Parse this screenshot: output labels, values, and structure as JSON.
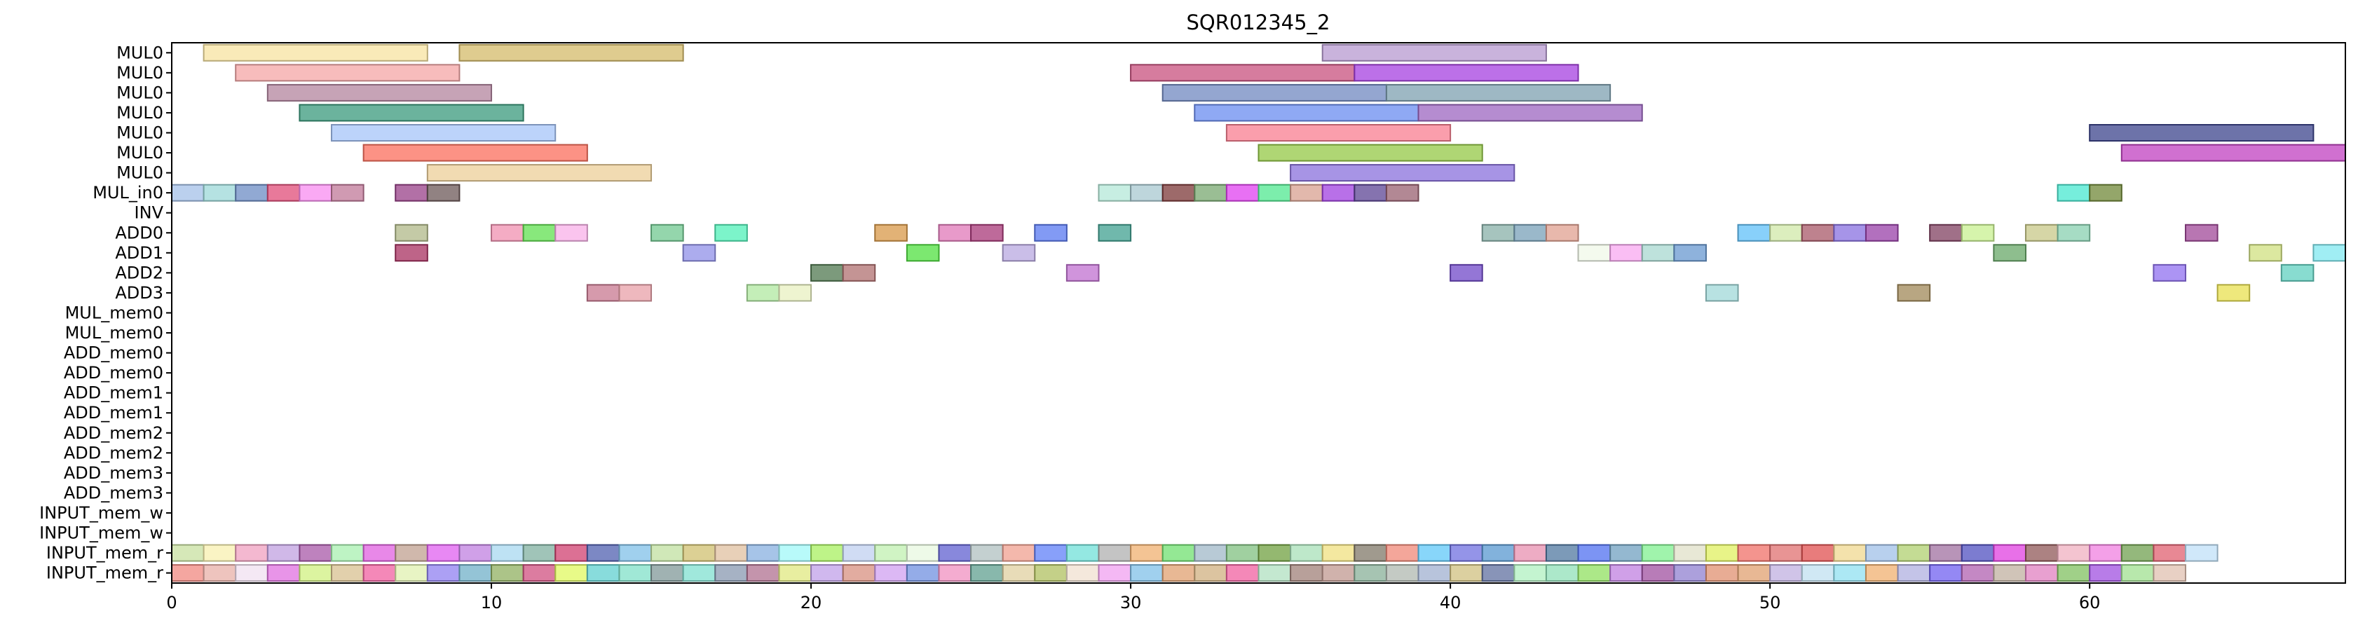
{
  "chart_data": {
    "type": "gantt",
    "title": "SQR012345_2",
    "xlim": [
      0,
      68
    ],
    "x_ticks": [
      0,
      10,
      20,
      30,
      40,
      50,
      60
    ],
    "rows": [
      "MUL0",
      "MUL0",
      "MUL0",
      "MUL0",
      "MUL0",
      "MUL0",
      "MUL0",
      "MUL_in0",
      "INV",
      "ADD0",
      "ADD1",
      "ADD2",
      "ADD3",
      "MUL_mem0",
      "MUL_mem0",
      "ADD_mem0",
      "ADD_mem0",
      "ADD_mem1",
      "ADD_mem1",
      "ADD_mem2",
      "ADD_mem2",
      "ADD_mem3",
      "ADD_mem3",
      "INPUT_mem_w",
      "INPUT_mem_w",
      "INPUT_mem_r",
      "INPUT_mem_r"
    ],
    "bars": [
      {
        "row": 0,
        "start": 1,
        "end": 8,
        "color": "#f7e3a0"
      },
      {
        "row": 0,
        "start": 9,
        "end": 16,
        "color": "#d4bb6a"
      },
      {
        "row": 0,
        "start": 36,
        "end": 43,
        "color": "#b79ad0"
      },
      {
        "row": 1,
        "start": 2,
        "end": 9,
        "color": "#f4a6a6"
      },
      {
        "row": 1,
        "start": 30,
        "end": 37,
        "color": "#c8507e"
      },
      {
        "row": 1,
        "start": 37,
        "end": 44,
        "color": "#a640e0"
      },
      {
        "row": 2,
        "start": 3,
        "end": 10,
        "color": "#b3849e"
      },
      {
        "row": 2,
        "start": 31,
        "end": 38,
        "color": "#7088c0"
      },
      {
        "row": 2,
        "start": 38,
        "end": 45,
        "color": "#7ea0b0"
      },
      {
        "row": 3,
        "start": 4,
        "end": 11,
        "color": "#3a9a7c"
      },
      {
        "row": 3,
        "start": 32,
        "end": 39,
        "color": "#6a8cf0"
      },
      {
        "row": 3,
        "start": 39,
        "end": 46,
        "color": "#9c66c0"
      },
      {
        "row": 4,
        "start": 5,
        "end": 12,
        "color": "#a6c4f8"
      },
      {
        "row": 4,
        "start": 33,
        "end": 40,
        "color": "#f87e90"
      },
      {
        "row": 4,
        "start": 60,
        "end": 67,
        "color": "#3c448c"
      },
      {
        "row": 5,
        "start": 6,
        "end": 13,
        "color": "#fb6e5c"
      },
      {
        "row": 5,
        "start": 34,
        "end": 41,
        "color": "#94c846"
      },
      {
        "row": 5,
        "start": 61,
        "end": 68,
        "color": "#c040c0"
      },
      {
        "row": 6,
        "start": 8,
        "end": 15,
        "color": "#eccf98"
      },
      {
        "row": 6,
        "start": 35,
        "end": 42,
        "color": "#8a70dc"
      },
      {
        "row": 7,
        "start": 0,
        "end": 1,
        "color": "#a4c0e8"
      },
      {
        "row": 7,
        "start": 1,
        "end": 2,
        "color": "#9cd8d8"
      },
      {
        "row": 7,
        "start": 2,
        "end": 3,
        "color": "#6c8cc4"
      },
      {
        "row": 7,
        "start": 3,
        "end": 4,
        "color": "#e04c78"
      },
      {
        "row": 7,
        "start": 4,
        "end": 5,
        "color": "#f88cf0"
      },
      {
        "row": 7,
        "start": 5,
        "end": 6,
        "color": "#c07898"
      },
      {
        "row": 7,
        "start": 7,
        "end": 8,
        "color": "#984088"
      },
      {
        "row": 7,
        "start": 8,
        "end": 9,
        "color": "#6c5858"
      },
      {
        "row": 7,
        "start": 29,
        "end": 30,
        "color": "#b4e8d8"
      },
      {
        "row": 7,
        "start": 30,
        "end": 31,
        "color": "#a8c8d0"
      },
      {
        "row": 7,
        "start": 31,
        "end": 32,
        "color": "#7c3838"
      },
      {
        "row": 7,
        "start": 32,
        "end": 33,
        "color": "#78a870"
      },
      {
        "row": 7,
        "start": 33,
        "end": 34,
        "color": "#e040f0"
      },
      {
        "row": 7,
        "start": 34,
        "end": 35,
        "color": "#50e890"
      },
      {
        "row": 7,
        "start": 35,
        "end": 36,
        "color": "#d8a090"
      },
      {
        "row": 7,
        "start": 36,
        "end": 37,
        "color": "#a040e0"
      },
      {
        "row": 7,
        "start": 37,
        "end": 38,
        "color": "#5c4494"
      },
      {
        "row": 7,
        "start": 38,
        "end": 39,
        "color": "#986070"
      },
      {
        "row": 7,
        "start": 59,
        "end": 60,
        "color": "#48e8d0"
      },
      {
        "row": 7,
        "start": 60,
        "end": 61,
        "color": "#708838"
      },
      {
        "row": 9,
        "start": 7,
        "end": 8,
        "color": "#b0b888"
      },
      {
        "row": 9,
        "start": 10,
        "end": 11,
        "color": "#f090b0"
      },
      {
        "row": 9,
        "start": 11,
        "end": 12,
        "color": "#60e050"
      },
      {
        "row": 9,
        "start": 12,
        "end": 13,
        "color": "#f8b0e8"
      },
      {
        "row": 9,
        "start": 15,
        "end": 16,
        "color": "#70c890"
      },
      {
        "row": 9,
        "start": 17,
        "end": 18,
        "color": "#50f0b8"
      },
      {
        "row": 9,
        "start": 22,
        "end": 23,
        "color": "#d89848"
      },
      {
        "row": 9,
        "start": 24,
        "end": 25,
        "color": "#e078b8"
      },
      {
        "row": 9,
        "start": 25,
        "end": 26,
        "color": "#a83878"
      },
      {
        "row": 9,
        "start": 27,
        "end": 28,
        "color": "#5878f0"
      },
      {
        "row": 9,
        "start": 29,
        "end": 30,
        "color": "#40a090"
      },
      {
        "row": 9,
        "start": 41,
        "end": 42,
        "color": "#88b0a8"
      },
      {
        "row": 9,
        "start": 42,
        "end": 43,
        "color": "#78a0b8"
      },
      {
        "row": 9,
        "start": 43,
        "end": 44,
        "color": "#e0a090"
      },
      {
        "row": 9,
        "start": 49,
        "end": 50,
        "color": "#60c0f8"
      },
      {
        "row": 9,
        "start": 50,
        "end": 51,
        "color": "#d0e8a8"
      },
      {
        "row": 9,
        "start": 51,
        "end": 52,
        "color": "#a85868"
      },
      {
        "row": 9,
        "start": 52,
        "end": 53,
        "color": "#8870e0"
      },
      {
        "row": 9,
        "start": 53,
        "end": 54,
        "color": "#9840a8"
      },
      {
        "row": 9,
        "start": 55,
        "end": 56,
        "color": "#804060"
      },
      {
        "row": 9,
        "start": 56,
        "end": 57,
        "color": "#c8f090"
      },
      {
        "row": 9,
        "start": 58,
        "end": 59,
        "color": "#c8c888"
      },
      {
        "row": 9,
        "start": 59,
        "end": 60,
        "color": "#88d0b0"
      },
      {
        "row": 9,
        "start": 63,
        "end": 64,
        "color": "#a04898"
      },
      {
        "row": 10,
        "start": 7,
        "end": 8,
        "color": "#a83060"
      },
      {
        "row": 10,
        "start": 16,
        "end": 17,
        "color": "#9090e8"
      },
      {
        "row": 10,
        "start": 23,
        "end": 24,
        "color": "#50e040"
      },
      {
        "row": 10,
        "start": 26,
        "end": 27,
        "color": "#b8a8e0"
      },
      {
        "row": 10,
        "start": 44,
        "end": 45,
        "color": "#f0f8e8"
      },
      {
        "row": 10,
        "start": 45,
        "end": 46,
        "color": "#f8a8f0"
      },
      {
        "row": 10,
        "start": 46,
        "end": 47,
        "color": "#a8d8d0"
      },
      {
        "row": 10,
        "start": 47,
        "end": 48,
        "color": "#6898d0"
      },
      {
        "row": 10,
        "start": 57,
        "end": 58,
        "color": "#68a868"
      },
      {
        "row": 10,
        "start": 65,
        "end": 66,
        "color": "#d0e080"
      },
      {
        "row": 10,
        "start": 67,
        "end": 68,
        "color": "#80e8f0"
      },
      {
        "row": 11,
        "start": 20,
        "end": 21,
        "color": "#507850"
      },
      {
        "row": 11,
        "start": 21,
        "end": 22,
        "color": "#b07070"
      },
      {
        "row": 11,
        "start": 28,
        "end": 29,
        "color": "#c070d0"
      },
      {
        "row": 11,
        "start": 40,
        "end": 41,
        "color": "#7048c8"
      },
      {
        "row": 11,
        "start": 62,
        "end": 63,
        "color": "#9070f0"
      },
      {
        "row": 11,
        "start": 66,
        "end": 67,
        "color": "#60d0c0"
      },
      {
        "row": 12,
        "start": 13,
        "end": 14,
        "color": "#c87890"
      },
      {
        "row": 12,
        "start": 14,
        "end": 15,
        "color": "#e8a0a8"
      },
      {
        "row": 12,
        "start": 18,
        "end": 19,
        "color": "#b0e8a0"
      },
      {
        "row": 12,
        "start": 19,
        "end": 20,
        "color": "#e8f0c0"
      },
      {
        "row": 12,
        "start": 48,
        "end": 49,
        "color": "#a0d8d8"
      },
      {
        "row": 12,
        "start": 54,
        "end": 55,
        "color": "#a08858"
      },
      {
        "row": 12,
        "start": 64,
        "end": 65,
        "color": "#e8e050"
      }
    ],
    "row25_colors": [
      "#c8e0a0",
      "#f8f0b0",
      "#f0a0c0",
      "#c0a0e0",
      "#a858a8",
      "#a8f0b0",
      "#e060e0",
      "#c0a090",
      "#e060f0",
      "#c080e0",
      "#a8d8f0",
      "#80b0a0",
      "#d04070",
      "#5060b0",
      "#80c0e8",
      "#c0e0a0",
      "#d0c070",
      "#e0c0a0",
      "#88b0e0",
      "#a0f8f8",
      "#a8f060",
      "#c0d0f0",
      "#c0f0b0",
      "#e8f8e0",
      "#6060d0",
      "#b0c0c0",
      "#f0a090",
      "#6080f8",
      "#70e0d8",
      "#b0b0b0",
      "#f0b070",
      "#70e070",
      "#a0b8c8",
      "#80c080",
      "#70a040",
      "#a8e0b8",
      "#f0e080",
      "#807868",
      "#f08878",
      "#60c8f8",
      "#7070e0",
      "#5898d0",
      "#e890b0",
      "#5078a0",
      "#5070f0",
      "#70a0c0",
      "#80f090",
      "#e0e0c8",
      "#e0f060",
      "#f07068",
      "#e07070",
      "#e05050",
      "#f0d890",
      "#a0c0e8",
      "#b0d070",
      "#a070a0",
      "#5050c0",
      "#e040e0",
      "#905858",
      "#f0b0c0",
      "#f080e0",
      "#70a050",
      "#e06070",
      "#c0e0f8"
    ],
    "row26_colors": [
      "#f08880",
      "#e8b0a8",
      "#f0e0f0",
      "#e070e0",
      "#d0f080",
      "#d8c090",
      "#f060a0",
      "#e0f0b0",
      "#9080f0",
      "#70b0c8",
      "#90b060",
      "#d05080",
      "#e0f860",
      "#60d0d0",
      "#80e0c8",
      "#809898",
      "#80e0d0",
      "#8898b0",
      "#b07090",
      "#e0e880",
      "#c0a0e8",
      "#d89080",
      "#d0a0f0",
      "#7090e0",
      "#f090c0",
      "#60a090",
      "#e0d0a0",
      "#b0c060",
      "#f0e0d0",
      "#f0a0f0",
      "#80c0e8",
      "#e0a070",
      "#d0b080",
      "#f060a0",
      "#b0e0c0",
      "#a08078",
      "#c09890",
      "#88b098",
      "#b0b8b0",
      "#a0b0d0",
      "#d0c080",
      "#6070a0",
      "#b0f0c0",
      "#90e0b8",
      "#90e060",
      "#c080e0",
      "#a050a0",
      "#9080d0",
      "#e09070",
      "#e0a070",
      "#c0b0e0",
      "#c0e0f0",
      "#90e0f0",
      "#f0b070",
      "#b0b0e0",
      "#7060f0",
      "#b060b0",
      "#c0b0a0",
      "#e080c0",
      "#80c060",
      "#a050e0",
      "#a0e090",
      "#e0c0b0"
    ]
  }
}
